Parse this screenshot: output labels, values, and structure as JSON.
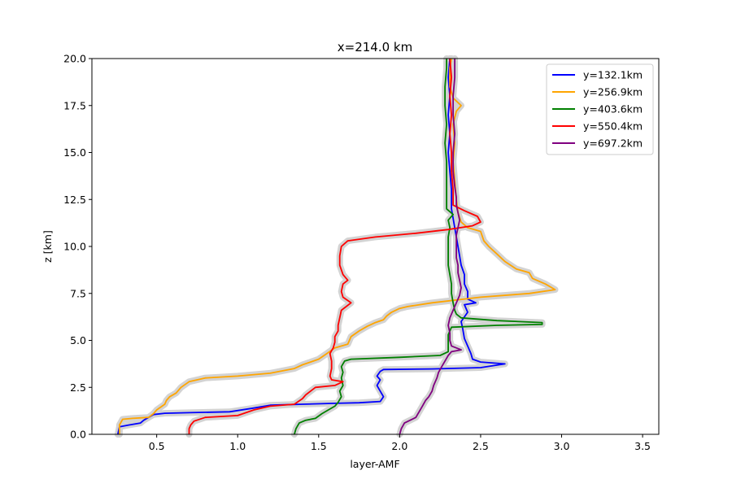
{
  "chart_data": {
    "type": "line",
    "title": "x=214.0 km",
    "xlabel": "layer-AMF",
    "ylabel": "z [km]",
    "xlim": [
      0.1,
      3.6
    ],
    "ylim": [
      0,
      20
    ],
    "xticks": [
      "0.5",
      "1.0",
      "1.5",
      "2.0",
      "2.5",
      "3.0",
      "3.5"
    ],
    "yticks": [
      "0.0",
      "2.5",
      "5.0",
      "7.5",
      "10.0",
      "12.5",
      "15.0",
      "17.5",
      "20.0"
    ],
    "legend_position": "top-right",
    "grid": false,
    "uncertainty_color": "#d3d3d3",
    "series": [
      {
        "name": "y=132.1km",
        "color": "#0000ff",
        "points": [
          [
            0.26,
            0.0
          ],
          [
            0.27,
            0.4
          ],
          [
            0.33,
            0.5
          ],
          [
            0.4,
            0.6
          ],
          [
            0.42,
            0.75
          ],
          [
            0.45,
            0.9
          ],
          [
            0.48,
            1.05
          ],
          [
            0.55,
            1.12
          ],
          [
            0.7,
            1.15
          ],
          [
            0.95,
            1.2
          ],
          [
            1.1,
            1.4
          ],
          [
            1.2,
            1.55
          ],
          [
            1.4,
            1.6
          ],
          [
            1.6,
            1.65
          ],
          [
            1.75,
            1.68
          ],
          [
            1.88,
            1.75
          ],
          [
            1.9,
            2.0
          ],
          [
            1.88,
            2.3
          ],
          [
            1.86,
            2.6
          ],
          [
            1.88,
            2.9
          ],
          [
            1.86,
            3.1
          ],
          [
            1.88,
            3.35
          ],
          [
            1.9,
            3.45
          ],
          [
            2.2,
            3.48
          ],
          [
            2.5,
            3.55
          ],
          [
            2.65,
            3.75
          ],
          [
            2.5,
            3.85
          ],
          [
            2.45,
            4.0
          ],
          [
            2.44,
            4.3
          ],
          [
            2.42,
            4.7
          ],
          [
            2.4,
            5.1
          ],
          [
            2.39,
            5.6
          ],
          [
            2.38,
            6.0
          ],
          [
            2.42,
            6.5
          ],
          [
            2.4,
            6.9
          ],
          [
            2.47,
            7.0
          ],
          [
            2.42,
            7.2
          ],
          [
            2.42,
            7.6
          ],
          [
            2.4,
            8.0
          ],
          [
            2.4,
            8.5
          ],
          [
            2.38,
            9.0
          ],
          [
            2.37,
            9.5
          ],
          [
            2.36,
            10.0
          ],
          [
            2.35,
            10.5
          ],
          [
            2.34,
            11.0
          ],
          [
            2.33,
            11.5
          ],
          [
            2.32,
            12.0
          ],
          [
            2.32,
            13.0
          ],
          [
            2.31,
            14.0
          ],
          [
            2.3,
            15.0
          ],
          [
            2.31,
            16.0
          ],
          [
            2.3,
            17.0
          ],
          [
            2.31,
            18.0
          ],
          [
            2.3,
            19.0
          ],
          [
            2.31,
            20.0
          ]
        ]
      },
      {
        "name": "y=256.9km",
        "color": "#ffa500",
        "points": [
          [
            0.27,
            0.0
          ],
          [
            0.27,
            0.5
          ],
          [
            0.29,
            0.8
          ],
          [
            0.35,
            0.85
          ],
          [
            0.45,
            0.9
          ],
          [
            0.48,
            1.1
          ],
          [
            0.5,
            1.3
          ],
          [
            0.55,
            1.6
          ],
          [
            0.56,
            1.8
          ],
          [
            0.58,
            2.0
          ],
          [
            0.62,
            2.2
          ],
          [
            0.65,
            2.5
          ],
          [
            0.7,
            2.8
          ],
          [
            0.8,
            3.0
          ],
          [
            1.0,
            3.1
          ],
          [
            1.2,
            3.25
          ],
          [
            1.35,
            3.5
          ],
          [
            1.4,
            3.7
          ],
          [
            1.45,
            3.85
          ],
          [
            1.5,
            4.0
          ],
          [
            1.55,
            4.3
          ],
          [
            1.6,
            4.6
          ],
          [
            1.68,
            4.8
          ],
          [
            1.7,
            5.2
          ],
          [
            1.75,
            5.5
          ],
          [
            1.8,
            5.75
          ],
          [
            1.85,
            5.95
          ],
          [
            1.9,
            6.1
          ],
          [
            1.92,
            6.3
          ],
          [
            1.95,
            6.5
          ],
          [
            2.0,
            6.7
          ],
          [
            2.05,
            6.8
          ],
          [
            2.2,
            7.0
          ],
          [
            2.5,
            7.3
          ],
          [
            2.8,
            7.5
          ],
          [
            2.96,
            7.7
          ],
          [
            2.9,
            8.0
          ],
          [
            2.82,
            8.3
          ],
          [
            2.8,
            8.6
          ],
          [
            2.72,
            8.8
          ],
          [
            2.65,
            9.2
          ],
          [
            2.6,
            9.6
          ],
          [
            2.55,
            10.0
          ],
          [
            2.52,
            10.3
          ],
          [
            2.5,
            10.8
          ],
          [
            2.42,
            11.0
          ],
          [
            2.38,
            11.3
          ],
          [
            2.36,
            11.8
          ],
          [
            2.35,
            12.5
          ],
          [
            2.34,
            13.5
          ],
          [
            2.33,
            14.5
          ],
          [
            2.34,
            15.5
          ],
          [
            2.33,
            16.5
          ],
          [
            2.35,
            17.2
          ],
          [
            2.38,
            17.5
          ],
          [
            2.33,
            17.9
          ],
          [
            2.31,
            18.5
          ],
          [
            2.31,
            19.5
          ],
          [
            2.32,
            20.0
          ]
        ]
      },
      {
        "name": "y=403.6km",
        "color": "#008000",
        "points": [
          [
            1.35,
            0.0
          ],
          [
            1.36,
            0.3
          ],
          [
            1.38,
            0.6
          ],
          [
            1.42,
            0.75
          ],
          [
            1.48,
            0.85
          ],
          [
            1.52,
            1.1
          ],
          [
            1.56,
            1.3
          ],
          [
            1.6,
            1.5
          ],
          [
            1.62,
            1.7
          ],
          [
            1.64,
            2.0
          ],
          [
            1.63,
            2.3
          ],
          [
            1.65,
            2.6
          ],
          [
            1.64,
            3.0
          ],
          [
            1.65,
            3.3
          ],
          [
            1.64,
            3.6
          ],
          [
            1.66,
            3.9
          ],
          [
            1.7,
            4.0
          ],
          [
            2.0,
            4.1
          ],
          [
            2.25,
            4.2
          ],
          [
            2.3,
            4.4
          ],
          [
            2.3,
            4.8
          ],
          [
            2.3,
            5.3
          ],
          [
            2.32,
            5.7
          ],
          [
            2.6,
            5.8
          ],
          [
            2.88,
            5.85
          ],
          [
            2.88,
            5.95
          ],
          [
            2.6,
            6.05
          ],
          [
            2.38,
            6.2
          ],
          [
            2.35,
            6.4
          ],
          [
            2.34,
            6.6
          ],
          [
            2.33,
            7.0
          ],
          [
            2.32,
            7.5
          ],
          [
            2.32,
            8.0
          ],
          [
            2.31,
            8.5
          ],
          [
            2.3,
            9.0
          ],
          [
            2.3,
            9.5
          ],
          [
            2.3,
            10.0
          ],
          [
            2.3,
            10.5
          ],
          [
            2.31,
            11.0
          ],
          [
            2.3,
            11.4
          ],
          [
            2.33,
            11.7
          ],
          [
            2.29,
            12.0
          ],
          [
            2.29,
            12.5
          ],
          [
            2.29,
            13.5
          ],
          [
            2.29,
            14.5
          ],
          [
            2.28,
            15.5
          ],
          [
            2.29,
            16.5
          ],
          [
            2.28,
            17.5
          ],
          [
            2.28,
            18.5
          ],
          [
            2.29,
            19.5
          ],
          [
            2.29,
            20.0
          ]
        ]
      },
      {
        "name": "y=550.4km",
        "color": "#ff0000",
        "points": [
          [
            0.7,
            0.0
          ],
          [
            0.7,
            0.3
          ],
          [
            0.71,
            0.5
          ],
          [
            0.73,
            0.7
          ],
          [
            0.8,
            0.9
          ],
          [
            1.0,
            1.0
          ],
          [
            1.1,
            1.3
          ],
          [
            1.2,
            1.5
          ],
          [
            1.35,
            1.6
          ],
          [
            1.4,
            1.9
          ],
          [
            1.42,
            2.1
          ],
          [
            1.45,
            2.3
          ],
          [
            1.48,
            2.5
          ],
          [
            1.6,
            2.6
          ],
          [
            1.65,
            2.8
          ],
          [
            1.58,
            2.9
          ],
          [
            1.57,
            3.1
          ],
          [
            1.58,
            3.5
          ],
          [
            1.58,
            3.9
          ],
          [
            1.57,
            4.3
          ],
          [
            1.59,
            4.6
          ],
          [
            1.6,
            4.9
          ],
          [
            1.6,
            5.2
          ],
          [
            1.62,
            5.5
          ],
          [
            1.62,
            5.8
          ],
          [
            1.63,
            6.2
          ],
          [
            1.64,
            6.6
          ],
          [
            1.7,
            7.0
          ],
          [
            1.65,
            7.3
          ],
          [
            1.64,
            7.6
          ],
          [
            1.65,
            8.0
          ],
          [
            1.68,
            8.2
          ],
          [
            1.65,
            8.5
          ],
          [
            1.63,
            9.0
          ],
          [
            1.63,
            9.5
          ],
          [
            1.64,
            10.0
          ],
          [
            1.68,
            10.3
          ],
          [
            1.85,
            10.5
          ],
          [
            2.1,
            10.7
          ],
          [
            2.3,
            10.9
          ],
          [
            2.45,
            11.1
          ],
          [
            2.5,
            11.3
          ],
          [
            2.48,
            11.6
          ],
          [
            2.4,
            11.9
          ],
          [
            2.33,
            12.2
          ],
          [
            2.33,
            13.0
          ],
          [
            2.32,
            14.0
          ],
          [
            2.32,
            15.0
          ],
          [
            2.31,
            16.0
          ],
          [
            2.32,
            17.0
          ],
          [
            2.31,
            18.0
          ],
          [
            2.32,
            19.0
          ],
          [
            2.31,
            20.0
          ]
        ]
      },
      {
        "name": "y=697.2km",
        "color": "#800080",
        "points": [
          [
            2.0,
            0.0
          ],
          [
            2.01,
            0.3
          ],
          [
            2.03,
            0.6
          ],
          [
            2.1,
            0.9
          ],
          [
            2.12,
            1.2
          ],
          [
            2.14,
            1.5
          ],
          [
            2.16,
            1.8
          ],
          [
            2.18,
            2.0
          ],
          [
            2.2,
            2.3
          ],
          [
            2.21,
            2.6
          ],
          [
            2.23,
            3.0
          ],
          [
            2.24,
            3.3
          ],
          [
            2.26,
            3.6
          ],
          [
            2.28,
            3.9
          ],
          [
            2.3,
            4.2
          ],
          [
            2.32,
            4.4
          ],
          [
            2.38,
            4.5
          ],
          [
            2.32,
            4.7
          ],
          [
            2.31,
            5.0
          ],
          [
            2.31,
            5.4
          ],
          [
            2.3,
            5.8
          ],
          [
            2.31,
            6.2
          ],
          [
            2.33,
            6.6
          ],
          [
            2.35,
            7.0
          ],
          [
            2.37,
            7.4
          ],
          [
            2.38,
            7.8
          ],
          [
            2.37,
            8.2
          ],
          [
            2.36,
            8.6
          ],
          [
            2.36,
            9.0
          ],
          [
            2.35,
            9.4
          ],
          [
            2.35,
            9.8
          ],
          [
            2.35,
            10.2
          ],
          [
            2.35,
            10.6
          ],
          [
            2.36,
            11.0
          ],
          [
            2.37,
            11.4
          ],
          [
            2.36,
            11.8
          ],
          [
            2.35,
            12.2
          ],
          [
            2.35,
            12.6
          ],
          [
            2.34,
            13.2
          ],
          [
            2.33,
            14.0
          ],
          [
            2.33,
            15.0
          ],
          [
            2.34,
            16.0
          ],
          [
            2.33,
            17.0
          ],
          [
            2.33,
            18.0
          ],
          [
            2.34,
            19.0
          ],
          [
            2.34,
            20.0
          ]
        ]
      }
    ]
  }
}
